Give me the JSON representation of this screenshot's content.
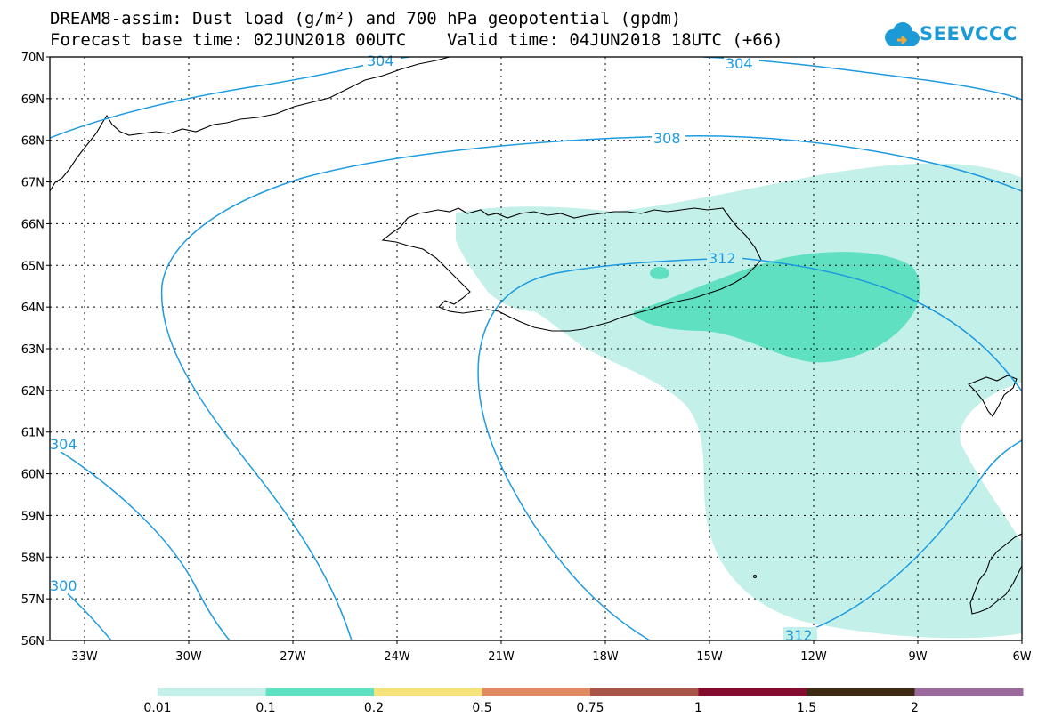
{
  "title": {
    "line1": "DREAM8-assim: Dust load (g/m²) and 700 hPa geopotential (gpdm)",
    "line2": "Forecast base time: 02JUN2018 00UTC    Valid time: 04JUN2018 18UTC (+66)"
  },
  "logo": {
    "text": "SEEVCCC",
    "icon": "cloud-icon",
    "color": "#1b9ad6"
  },
  "map": {
    "lat_labels": [
      "70N",
      "69N",
      "68N",
      "67N",
      "66N",
      "65N",
      "64N",
      "63N",
      "62N",
      "61N",
      "60N",
      "59N",
      "58N",
      "57N",
      "56N"
    ],
    "lon_labels": [
      "33W",
      "30W",
      "27W",
      "24W",
      "21W",
      "18W",
      "15W",
      "12W",
      "9W",
      "6W"
    ],
    "lat_range": [
      56,
      70
    ],
    "lon_range": [
      -34.0,
      -6.0
    ],
    "grid": true,
    "contour_color": "#1e9be0",
    "contour_labels": [
      "304",
      "304",
      "308",
      "312",
      "312",
      "304",
      "300"
    ]
  },
  "colorbar": {
    "ticks": [
      "0.01",
      "0.1",
      "0.2",
      "0.5",
      "0.75",
      "1",
      "1.5",
      "2"
    ],
    "colors": [
      "#c4f0ea",
      "#5ee0c1",
      "#f6e27a",
      "#e08a62",
      "#a85448",
      "#840c2e",
      "#3e2a14",
      "#9a6a9c"
    ]
  }
}
